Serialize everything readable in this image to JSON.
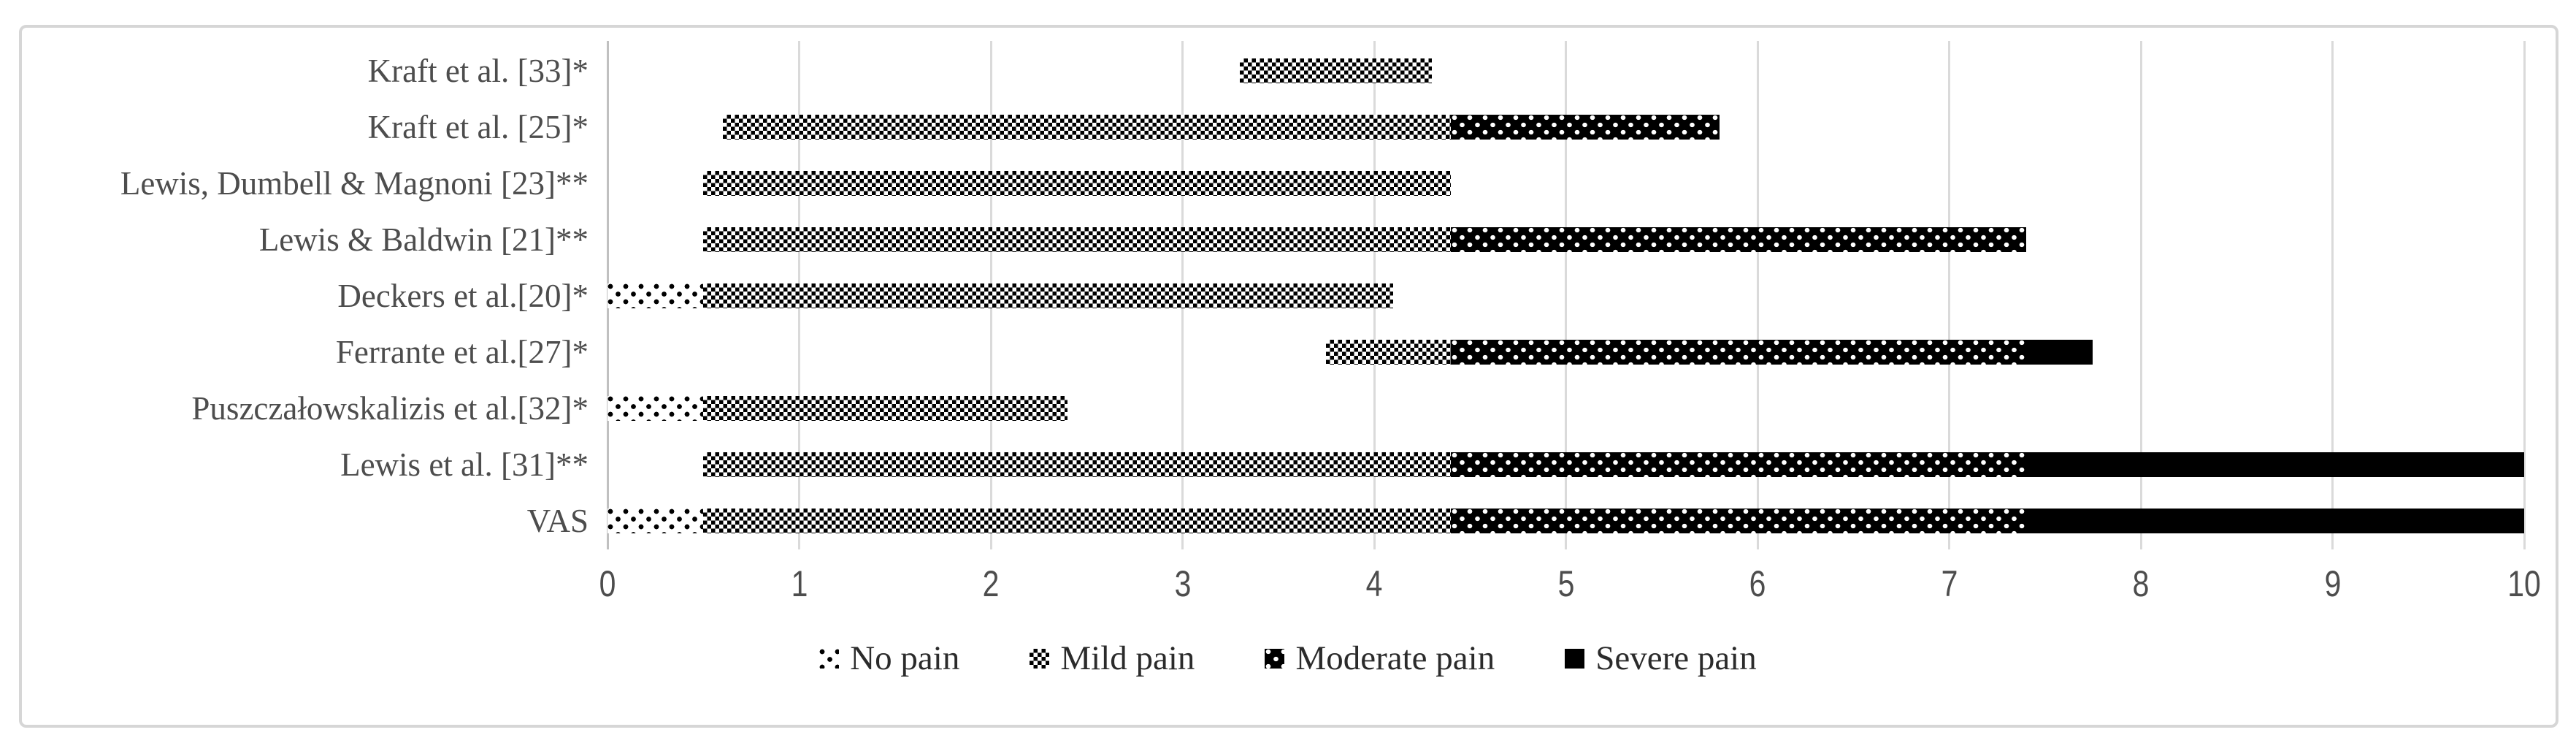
{
  "chart_data": {
    "type": "bar",
    "subtype": "horizontal-stacked-range",
    "title": "",
    "xlabel": "",
    "ylabel": "",
    "x_axis": {
      "min": 0,
      "max": 10,
      "ticks": [
        0,
        1,
        2,
        3,
        4,
        5,
        6,
        7,
        8,
        9,
        10
      ],
      "grid": true
    },
    "legend_position": "bottom-center",
    "legend": [
      {
        "label": "No pain",
        "pattern": "sparse-dots"
      },
      {
        "label": "Mild pain",
        "pattern": "checkerboard"
      },
      {
        "label": "Moderate pain",
        "pattern": "white-dots-on-black"
      },
      {
        "label": "Severe pain",
        "pattern": "solid-black"
      }
    ],
    "rows": [
      {
        "label": "Kraft et al. [33]*",
        "segments": [
          {
            "category": "Mild pain",
            "from": 3.3,
            "to": 4.3
          }
        ]
      },
      {
        "label": "Kraft et al. [25]*",
        "segments": [
          {
            "category": "Mild pain",
            "from": 0.6,
            "to": 4.4
          },
          {
            "category": "Moderate pain",
            "from": 4.4,
            "to": 5.8
          }
        ]
      },
      {
        "label": "Lewis, Dumbell & Magnoni [23]**",
        "segments": [
          {
            "category": "Mild pain",
            "from": 0.5,
            "to": 4.4
          }
        ]
      },
      {
        "label": "Lewis & Baldwin [21]**",
        "segments": [
          {
            "category": "Mild pain",
            "from": 0.5,
            "to": 4.4
          },
          {
            "category": "Moderate pain",
            "from": 4.4,
            "to": 7.4
          }
        ]
      },
      {
        "label": "Deckers et al.[20]*",
        "segments": [
          {
            "category": "No pain",
            "from": 0,
            "to": 0.5
          },
          {
            "category": "Mild pain",
            "from": 0.5,
            "to": 4.1
          }
        ]
      },
      {
        "label": "Ferrante et al.[27]*",
        "segments": [
          {
            "category": "Mild pain",
            "from": 3.75,
            "to": 4.4
          },
          {
            "category": "Moderate pain",
            "from": 4.4,
            "to": 7.4
          },
          {
            "category": "Severe pain",
            "from": 7.4,
            "to": 7.75
          }
        ]
      },
      {
        "label": "Puszczałowskalizis et al.[32]*",
        "segments": [
          {
            "category": "No pain",
            "from": 0,
            "to": 0.5
          },
          {
            "category": "Mild pain",
            "from": 0.5,
            "to": 2.4
          }
        ]
      },
      {
        "label": "Lewis et al. [31]**",
        "segments": [
          {
            "category": "Mild pain",
            "from": 0.5,
            "to": 4.4
          },
          {
            "category": "Moderate pain",
            "from": 4.4,
            "to": 7.4
          },
          {
            "category": "Severe pain",
            "from": 7.4,
            "to": 10
          }
        ]
      },
      {
        "label": "VAS",
        "segments": [
          {
            "category": "No pain",
            "from": 0,
            "to": 0.5
          },
          {
            "category": "Mild pain",
            "from": 0.5,
            "to": 4.4
          },
          {
            "category": "Moderate pain",
            "from": 4.4,
            "to": 7.4
          },
          {
            "category": "Severe pain",
            "from": 7.4,
            "to": 10
          }
        ]
      }
    ]
  },
  "colors": {
    "bar_black": "#000000",
    "gridline": "#dadada",
    "axis_line": "#c0c0c0",
    "frame_border": "#d6d6d6",
    "label_text": "#4d4d4d",
    "legend_text": "#2b2b2b"
  }
}
